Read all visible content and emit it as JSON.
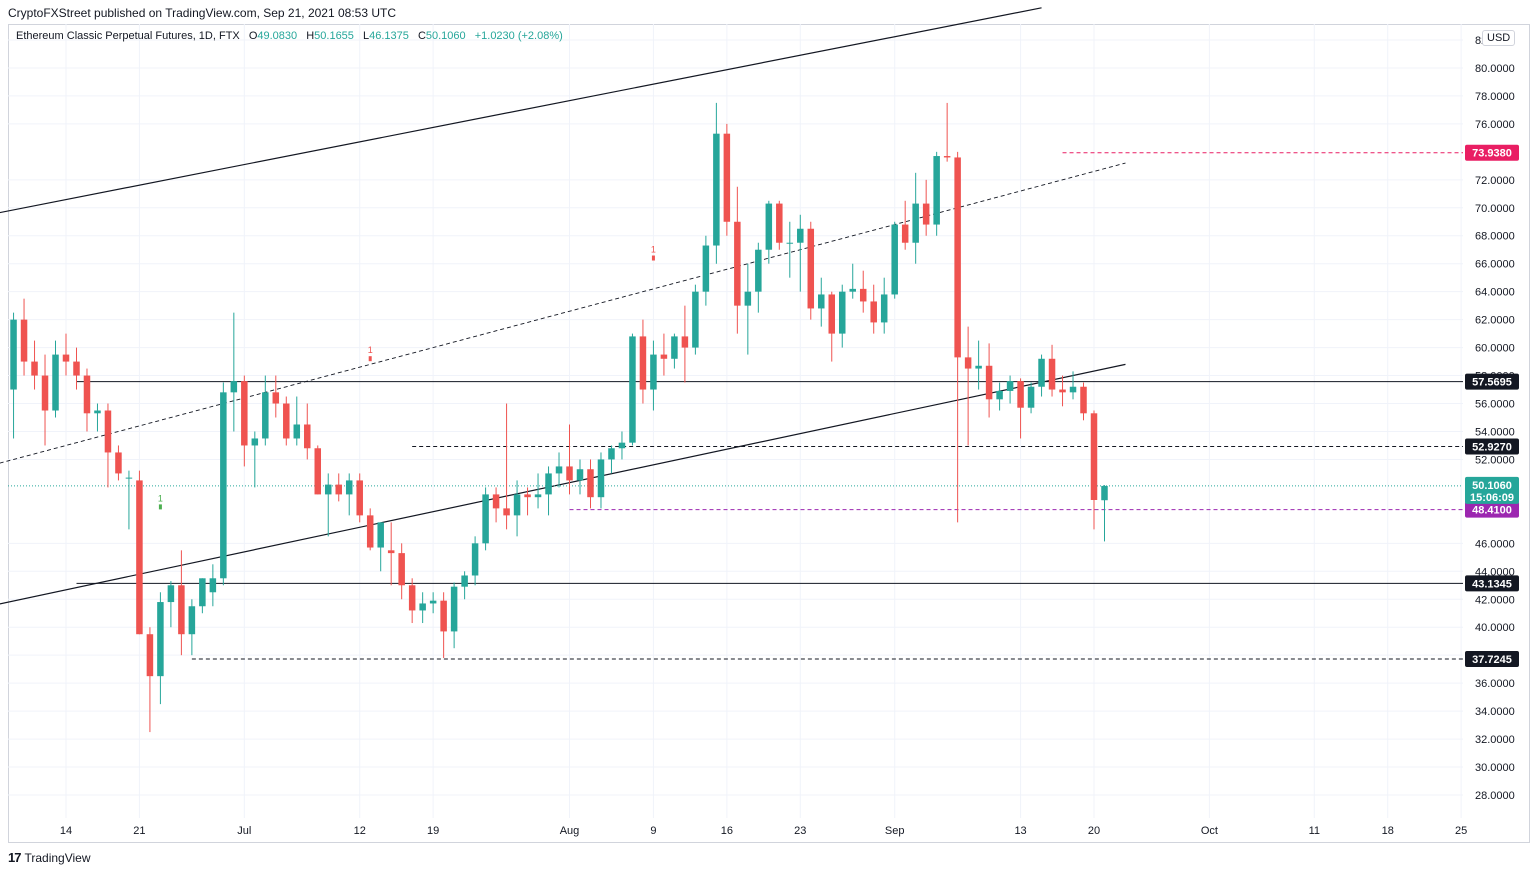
{
  "header": {
    "publisher_line": "CryptoFXStreet published on TradingView.com, Sep 21, 2021 08:53 UTC"
  },
  "legend": {
    "symbol": "Ethereum Classic Perpetual Futures, 1D, FTX",
    "o_label": "O",
    "o_value": "49.0830",
    "h_label": "H",
    "h_value": "50.1655",
    "l_label": "L",
    "l_value": "46.1375",
    "c_label": "C",
    "c_value": "50.1060",
    "change": "+1.0230 (+2.08%)"
  },
  "currency": "USD",
  "footer": {
    "brand": "TradingView",
    "logo": "17"
  },
  "colors": {
    "up": "#26a69a",
    "down": "#ef5350",
    "magenta": "#e91e63",
    "purple": "#9c27b0",
    "line": "#131722"
  },
  "chart_data": {
    "type": "candlestick",
    "title": "Ethereum Classic Perpetual Futures, 1D, FTX",
    "y_axis": {
      "min": 28,
      "max": 82,
      "unit": "USD",
      "tick_labels": [
        "82.0000",
        "80.0000",
        "78.0000",
        "76.0000",
        "72.0000",
        "70.0000",
        "68.0000",
        "66.0000",
        "64.0000",
        "62.0000",
        "60.0000",
        "58.0000",
        "56.0000",
        "54.0000",
        "52.0000",
        "46.0000",
        "44.0000",
        "42.0000",
        "40.0000",
        "38.0000",
        "36.0000",
        "34.0000",
        "32.0000",
        "30.0000",
        "28.0000"
      ]
    },
    "x_axis": {
      "tick_labels": [
        "14",
        "21",
        "Jul",
        "12",
        "19",
        "Aug",
        "9",
        "16",
        "23",
        "Sep",
        "13",
        "20",
        "Oct",
        "11",
        "18",
        "25"
      ],
      "tick_dates": [
        "2021-06-14",
        "2021-06-21",
        "2021-07-01",
        "2021-07-12",
        "2021-07-19",
        "2021-08-01",
        "2021-08-09",
        "2021-08-16",
        "2021-08-23",
        "2021-09-01",
        "2021-09-13",
        "2021-09-20",
        "2021-10-01",
        "2021-10-11",
        "2021-10-18",
        "2021-10-25"
      ]
    },
    "candles": [
      {
        "date": "2021-06-09",
        "o": 57,
        "h": 62.5,
        "l": 53.5,
        "c": 62
      },
      {
        "date": "2021-06-10",
        "o": 62,
        "h": 63.5,
        "l": 58,
        "c": 59
      },
      {
        "date": "2021-06-11",
        "o": 59,
        "h": 60.5,
        "l": 57,
        "c": 58
      },
      {
        "date": "2021-06-12",
        "o": 58,
        "h": 59.5,
        "l": 53,
        "c": 55.5
      },
      {
        "date": "2021-06-13",
        "o": 55.5,
        "h": 60.5,
        "l": 55,
        "c": 59.5
      },
      {
        "date": "2021-06-14",
        "o": 59.5,
        "h": 61,
        "l": 58,
        "c": 59
      },
      {
        "date": "2021-06-15",
        "o": 59,
        "h": 60,
        "l": 57,
        "c": 58
      },
      {
        "date": "2021-06-16",
        "o": 58,
        "h": 58.5,
        "l": 54,
        "c": 55.3
      },
      {
        "date": "2021-06-17",
        "o": 55.3,
        "h": 56,
        "l": 54,
        "c": 55.5
      },
      {
        "date": "2021-06-18",
        "o": 55.5,
        "h": 56,
        "l": 50,
        "c": 52.5
      },
      {
        "date": "2021-06-19",
        "o": 52.5,
        "h": 53,
        "l": 50.5,
        "c": 51
      },
      {
        "date": "2021-06-20",
        "o": 50.7,
        "h": 51.2,
        "l": 47,
        "c": 50.7
      },
      {
        "date": "2021-06-21",
        "o": 50.5,
        "h": 51.2,
        "l": 39.5,
        "c": 39.5
      },
      {
        "date": "2021-06-22",
        "o": 39.5,
        "h": 40,
        "l": 32.5,
        "c": 36.5
      },
      {
        "date": "2021-06-23",
        "o": 36.5,
        "h": 42.5,
        "l": 34.5,
        "c": 41.8
      },
      {
        "date": "2021-06-24",
        "o": 41.8,
        "h": 43.3,
        "l": 40,
        "c": 43
      },
      {
        "date": "2021-06-25",
        "o": 43,
        "h": 45.5,
        "l": 38,
        "c": 39.5
      },
      {
        "date": "2021-06-26",
        "o": 39.5,
        "h": 42,
        "l": 38,
        "c": 41.5
      },
      {
        "date": "2021-06-27",
        "o": 41.5,
        "h": 43.5,
        "l": 41,
        "c": 43.5
      },
      {
        "date": "2021-06-28",
        "o": 42.5,
        "h": 44.5,
        "l": 41.5,
        "c": 43.5
      },
      {
        "date": "2021-06-29",
        "o": 43.5,
        "h": 57.5,
        "l": 43,
        "c": 56.8
      },
      {
        "date": "2021-06-30",
        "o": 56.8,
        "h": 62.5,
        "l": 54,
        "c": 57.6
      },
      {
        "date": "2021-07-01",
        "o": 57.6,
        "h": 58,
        "l": 51.5,
        "c": 53
      },
      {
        "date": "2021-07-02",
        "o": 53,
        "h": 54,
        "l": 50,
        "c": 53.5
      },
      {
        "date": "2021-07-03",
        "o": 53.5,
        "h": 58,
        "l": 53,
        "c": 56.8
      },
      {
        "date": "2021-07-04",
        "o": 56.8,
        "h": 58,
        "l": 55,
        "c": 56
      },
      {
        "date": "2021-07-05",
        "o": 56,
        "h": 56.5,
        "l": 53,
        "c": 53.5
      },
      {
        "date": "2021-07-06",
        "o": 53.5,
        "h": 56.5,
        "l": 53,
        "c": 54.5
      },
      {
        "date": "2021-07-07",
        "o": 54.5,
        "h": 56,
        "l": 52,
        "c": 52.8
      },
      {
        "date": "2021-07-08",
        "o": 52.8,
        "h": 53,
        "l": 49.5,
        "c": 49.5
      },
      {
        "date": "2021-07-09",
        "o": 49.5,
        "h": 51,
        "l": 46.5,
        "c": 50.2
      },
      {
        "date": "2021-07-10",
        "o": 50.2,
        "h": 51,
        "l": 49,
        "c": 49.5
      },
      {
        "date": "2021-07-11",
        "o": 49.5,
        "h": 51,
        "l": 48,
        "c": 50.5
      },
      {
        "date": "2021-07-12",
        "o": 50.5,
        "h": 51,
        "l": 47.5,
        "c": 48
      },
      {
        "date": "2021-07-13",
        "o": 48,
        "h": 48.5,
        "l": 45.5,
        "c": 45.7
      },
      {
        "date": "2021-07-14",
        "o": 45.7,
        "h": 47.5,
        "l": 44,
        "c": 47.5
      },
      {
        "date": "2021-07-15",
        "o": 45.5,
        "h": 47.5,
        "l": 43,
        "c": 45.3
      },
      {
        "date": "2021-07-16",
        "o": 45.3,
        "h": 46,
        "l": 42,
        "c": 43
      },
      {
        "date": "2021-07-17",
        "o": 43,
        "h": 43.5,
        "l": 40.3,
        "c": 41.2
      },
      {
        "date": "2021-07-18",
        "o": 41.2,
        "h": 42.5,
        "l": 40.3,
        "c": 41.7
      },
      {
        "date": "2021-07-19",
        "o": 41.7,
        "h": 42.5,
        "l": 41,
        "c": 41.9
      },
      {
        "date": "2021-07-20",
        "o": 41.9,
        "h": 42.5,
        "l": 37.8,
        "c": 39.7
      },
      {
        "date": "2021-07-21",
        "o": 39.7,
        "h": 43.2,
        "l": 38.5,
        "c": 42.9
      },
      {
        "date": "2021-07-22",
        "o": 42.9,
        "h": 44,
        "l": 42,
        "c": 43.7
      },
      {
        "date": "2021-07-23",
        "o": 43.7,
        "h": 46.5,
        "l": 43,
        "c": 46
      },
      {
        "date": "2021-07-24",
        "o": 46,
        "h": 50,
        "l": 45.5,
        "c": 49.5
      },
      {
        "date": "2021-07-25",
        "o": 49.5,
        "h": 50,
        "l": 47.5,
        "c": 48.5
      },
      {
        "date": "2021-07-26",
        "o": 48.5,
        "h": 56,
        "l": 47,
        "c": 48
      },
      {
        "date": "2021-07-27",
        "o": 48,
        "h": 50.5,
        "l": 46.5,
        "c": 49.5
      },
      {
        "date": "2021-07-28",
        "o": 49.5,
        "h": 50,
        "l": 48,
        "c": 49.3
      },
      {
        "date": "2021-07-29",
        "o": 49.3,
        "h": 51,
        "l": 48.5,
        "c": 49.5
      },
      {
        "date": "2021-07-30",
        "o": 49.5,
        "h": 51.5,
        "l": 48,
        "c": 51
      },
      {
        "date": "2021-07-31",
        "o": 51,
        "h": 52.5,
        "l": 50,
        "c": 51.5
      },
      {
        "date": "2021-08-01",
        "o": 51.5,
        "h": 54.5,
        "l": 49.5,
        "c": 50.5
      },
      {
        "date": "2021-08-02",
        "o": 50.5,
        "h": 52,
        "l": 49.5,
        "c": 51.3
      },
      {
        "date": "2021-08-03",
        "o": 51.3,
        "h": 52,
        "l": 48.5,
        "c": 49.3
      },
      {
        "date": "2021-08-04",
        "o": 49.3,
        "h": 52.5,
        "l": 48.5,
        "c": 52
      },
      {
        "date": "2021-08-05",
        "o": 52,
        "h": 53,
        "l": 51,
        "c": 52.8
      },
      {
        "date": "2021-08-06",
        "o": 52.8,
        "h": 54,
        "l": 52,
        "c": 53.2
      },
      {
        "date": "2021-08-07",
        "o": 53.2,
        "h": 61,
        "l": 53,
        "c": 60.8
      },
      {
        "date": "2021-08-08",
        "o": 60.8,
        "h": 62,
        "l": 56,
        "c": 57
      },
      {
        "date": "2021-08-09",
        "o": 57,
        "h": 60.5,
        "l": 55.5,
        "c": 59.5
      },
      {
        "date": "2021-08-10",
        "o": 59.5,
        "h": 61,
        "l": 58,
        "c": 59.2
      },
      {
        "date": "2021-08-11",
        "o": 59.2,
        "h": 61,
        "l": 58.5,
        "c": 60.8
      },
      {
        "date": "2021-08-12",
        "o": 60.8,
        "h": 63,
        "l": 57.5,
        "c": 60
      },
      {
        "date": "2021-08-13",
        "o": 60,
        "h": 64.5,
        "l": 59.5,
        "c": 64
      },
      {
        "date": "2021-08-14",
        "o": 64,
        "h": 68,
        "l": 63,
        "c": 67.3
      },
      {
        "date": "2021-08-15",
        "o": 67.3,
        "h": 77.5,
        "l": 66,
        "c": 75.3
      },
      {
        "date": "2021-08-16",
        "o": 75.3,
        "h": 76,
        "l": 68,
        "c": 69
      },
      {
        "date": "2021-08-17",
        "o": 69,
        "h": 71.5,
        "l": 61,
        "c": 63
      },
      {
        "date": "2021-08-18",
        "o": 63,
        "h": 66,
        "l": 59.5,
        "c": 64
      },
      {
        "date": "2021-08-19",
        "o": 64,
        "h": 67.5,
        "l": 62.5,
        "c": 67
      },
      {
        "date": "2021-08-20",
        "o": 67,
        "h": 70.5,
        "l": 66,
        "c": 70.3
      },
      {
        "date": "2021-08-21",
        "o": 70.3,
        "h": 70.5,
        "l": 67,
        "c": 67.5
      },
      {
        "date": "2021-08-22",
        "o": 67.5,
        "h": 69,
        "l": 65,
        "c": 67.5
      },
      {
        "date": "2021-08-23",
        "o": 67.5,
        "h": 69.5,
        "l": 64,
        "c": 68.5
      },
      {
        "date": "2021-08-24",
        "o": 68.5,
        "h": 69,
        "l": 62,
        "c": 62.8
      },
      {
        "date": "2021-08-25",
        "o": 62.8,
        "h": 65,
        "l": 61.5,
        "c": 63.8
      },
      {
        "date": "2021-08-26",
        "o": 63.8,
        "h": 64,
        "l": 59,
        "c": 61
      },
      {
        "date": "2021-08-27",
        "o": 61,
        "h": 64.5,
        "l": 60,
        "c": 64
      },
      {
        "date": "2021-08-28",
        "o": 64,
        "h": 66,
        "l": 63.5,
        "c": 64.2
      },
      {
        "date": "2021-08-29",
        "o": 64.2,
        "h": 65.5,
        "l": 62.5,
        "c": 63.3
      },
      {
        "date": "2021-08-30",
        "o": 63.3,
        "h": 64.5,
        "l": 61,
        "c": 61.8
      },
      {
        "date": "2021-08-31",
        "o": 61.8,
        "h": 65,
        "l": 61,
        "c": 63.8
      },
      {
        "date": "2021-09-01",
        "o": 63.8,
        "h": 69,
        "l": 63.5,
        "c": 68.8
      },
      {
        "date": "2021-09-02",
        "o": 68.8,
        "h": 70.5,
        "l": 67,
        "c": 67.5
      },
      {
        "date": "2021-09-03",
        "o": 67.5,
        "h": 72.5,
        "l": 66,
        "c": 70.3
      },
      {
        "date": "2021-09-04",
        "o": 70.3,
        "h": 72,
        "l": 68,
        "c": 68.8
      },
      {
        "date": "2021-09-05",
        "o": 68.8,
        "h": 74,
        "l": 68,
        "c": 73.7
      },
      {
        "date": "2021-09-06",
        "o": 73.7,
        "h": 77.5,
        "l": 73.3,
        "c": 73.6
      },
      {
        "date": "2021-09-07",
        "o": 73.6,
        "h": 74,
        "l": 47.5,
        "c": 59.3
      },
      {
        "date": "2021-09-08",
        "o": 59.3,
        "h": 61.5,
        "l": 53,
        "c": 58.5
      },
      {
        "date": "2021-09-09",
        "o": 58.5,
        "h": 60.5,
        "l": 57,
        "c": 58.7
      },
      {
        "date": "2021-09-10",
        "o": 58.7,
        "h": 60.3,
        "l": 55,
        "c": 56.3
      },
      {
        "date": "2021-09-11",
        "o": 56.3,
        "h": 57.5,
        "l": 55.5,
        "c": 56.9
      },
      {
        "date": "2021-09-12",
        "o": 56.9,
        "h": 58,
        "l": 56,
        "c": 57.6
      },
      {
        "date": "2021-09-13",
        "o": 57.6,
        "h": 57.8,
        "l": 53.5,
        "c": 55.7
      },
      {
        "date": "2021-09-14",
        "o": 55.7,
        "h": 57.5,
        "l": 55.3,
        "c": 57.2
      },
      {
        "date": "2021-09-15",
        "o": 57.2,
        "h": 59.5,
        "l": 56.5,
        "c": 59.2
      },
      {
        "date": "2021-09-16",
        "o": 59.2,
        "h": 60.2,
        "l": 56.5,
        "c": 57
      },
      {
        "date": "2021-09-17",
        "o": 57,
        "h": 58,
        "l": 55.8,
        "c": 56.8
      },
      {
        "date": "2021-09-18",
        "o": 56.8,
        "h": 58.3,
        "l": 56.3,
        "c": 57.2
      },
      {
        "date": "2021-09-19",
        "o": 57.2,
        "h": 57.5,
        "l": 54.8,
        "c": 55.3
      },
      {
        "date": "2021-09-20",
        "o": 55.3,
        "h": 55.5,
        "l": 47,
        "c": 49.1
      },
      {
        "date": "2021-09-21",
        "o": 49.083,
        "h": 50.1655,
        "l": 46.1375,
        "c": 50.106
      }
    ],
    "horizontal_levels": [
      {
        "price": 57.5695,
        "label": "57.5695",
        "style": "solid",
        "color": "#131722"
      },
      {
        "price": 52.927,
        "label": "52.9270",
        "style": "dashed",
        "color": "#131722"
      },
      {
        "price": 43.1345,
        "label": "43.1345",
        "style": "solid",
        "color": "#131722"
      },
      {
        "price": 37.7245,
        "label": "37.7245",
        "style": "dashed",
        "color": "#131722"
      },
      {
        "price": 73.938,
        "label": "73.9380",
        "style": "dashed",
        "color": "#e91e63"
      },
      {
        "price": 48.41,
        "label": "48.4100",
        "style": "dashed",
        "color": "#9c27b0"
      }
    ],
    "last_price": {
      "value": "50.1060",
      "countdown": "15:06:09"
    },
    "trendlines": [
      {
        "name": "channel-upper",
        "style": "solid"
      },
      {
        "name": "channel-middle",
        "style": "dashed"
      },
      {
        "name": "channel-lower",
        "style": "solid"
      }
    ],
    "signal_markers": [
      {
        "text": "1",
        "color": "#4caf50"
      },
      {
        "text": "1",
        "color": "#4caf50"
      },
      {
        "text": "1",
        "color": "#4caf50"
      },
      {
        "text": "1",
        "color": "#ef5350"
      },
      {
        "text": "1",
        "color": "#ef5350"
      }
    ]
  }
}
